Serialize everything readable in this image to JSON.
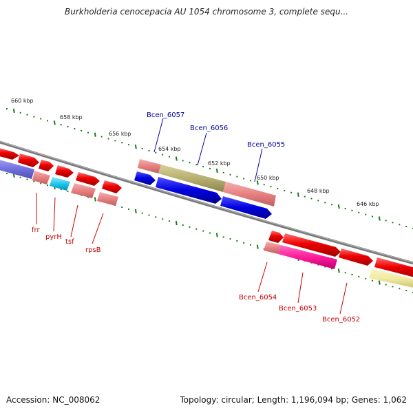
{
  "title": "Burkholderia cenocepacia AU 1054 chromosome 3, complete sequ...",
  "accession": "Accession: NC_008062",
  "summary": "Topology: circular; Length: 1,196,094 bp; Genes: 1,062",
  "ticks": [
    "660 kbp",
    "658 kbp",
    "656 kbp",
    "654 kbp",
    "652 kbp",
    "650 kbp",
    "648 kbp",
    "646 kbp"
  ],
  "gene_labels": {
    "top": [
      "Bcen_6057",
      "Bcen_6056",
      "Bcen_6055"
    ],
    "left": [
      "frr",
      "pyrH",
      "tsf",
      "rpsB"
    ],
    "right": [
      "Bcen_6054",
      "Bcen_6053",
      "Bcen_6052"
    ]
  },
  "colors": {
    "backbone": "#7a7a7a",
    "red": "#ee0000",
    "pink": "#e88080",
    "blue": "#0000e0",
    "olive": "#b8b070",
    "magenta": "#ff1a9a",
    "cyan": "#20c8ee",
    "purple": "#7070e0",
    "yellow": "#f0eaa0",
    "tick": "#1a7a1a"
  }
}
